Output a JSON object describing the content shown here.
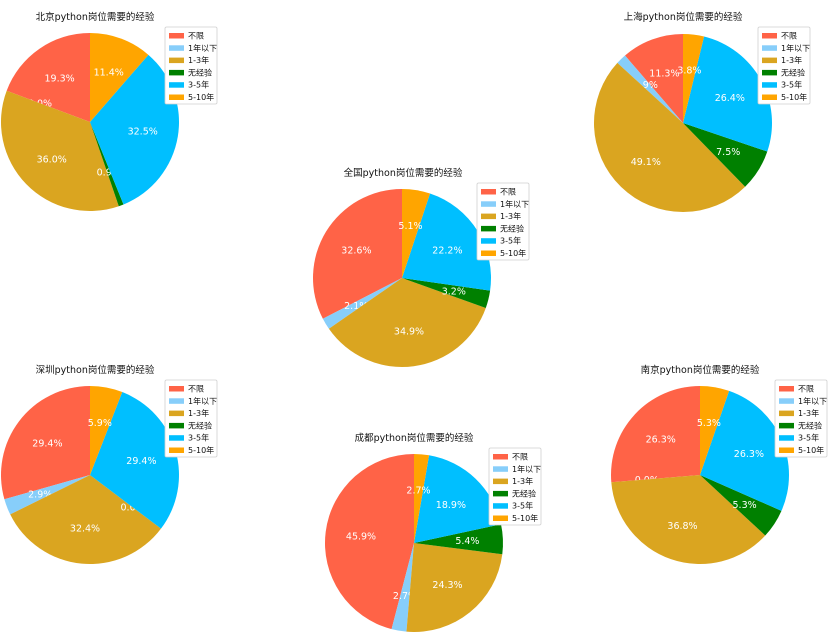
{
  "colors": [
    "#ff6347",
    "#87cefa",
    "#daa520",
    "#008000",
    "#00bfff",
    "#ffa500"
  ],
  "legend_labels": [
    "不限",
    "1年以下",
    "1-3年",
    "无经验",
    "3-5年",
    "5-10年"
  ],
  "chart_data": [
    {
      "type": "pie",
      "title": "北京python岗位需要的经验",
      "labels": [
        "不限",
        "1年以下",
        "1-3年",
        "无经验",
        "3-5年",
        "5-10年"
      ],
      "values": [
        19.3,
        0.0,
        36.0,
        0.9,
        32.5,
        11.4
      ],
      "pct_labels": [
        "19.3%",
        "0.0%",
        "36.0%",
        "0.9%",
        "32.5%",
        "11.4%"
      ],
      "legend_position": "upper-right"
    },
    {
      "type": "pie",
      "title": "上海python岗位需要的经验",
      "labels": [
        "不限",
        "1年以下",
        "1-3年",
        "无经验",
        "3-5年",
        "5-10年"
      ],
      "values": [
        11.3,
        1.9,
        49.1,
        7.5,
        26.4,
        3.8
      ],
      "pct_labels": [
        "11.3%",
        "1.9%",
        "49.1%",
        "7.5%",
        "26.4%",
        "3.8%"
      ],
      "legend_position": "upper-right"
    },
    {
      "type": "pie",
      "title": "全国python岗位需要的经验",
      "labels": [
        "不限",
        "1年以下",
        "1-3年",
        "无经验",
        "3-5年",
        "5-10年"
      ],
      "values": [
        32.6,
        2.1,
        34.9,
        3.2,
        22.2,
        5.1
      ],
      "pct_labels": [
        "32.6%",
        "2.1%",
        "34.9%",
        "3.2%",
        "22.2%",
        "5.1%"
      ],
      "legend_position": "upper-right"
    },
    {
      "type": "pie",
      "title": "深圳python岗位需要的经验",
      "labels": [
        "不限",
        "1年以下",
        "1-3年",
        "无经验",
        "3-5年",
        "5-10年"
      ],
      "values": [
        29.4,
        2.9,
        32.4,
        0.0,
        29.4,
        5.9
      ],
      "pct_labels": [
        "29.4%",
        "2.9%",
        "32.4%",
        "0.0%",
        "29.4%",
        "5.9%"
      ],
      "legend_position": "upper-right"
    },
    {
      "type": "pie",
      "title": "成都python岗位需要的经验",
      "labels": [
        "不限",
        "1年以下",
        "1-3年",
        "无经验",
        "3-5年",
        "5-10年"
      ],
      "values": [
        45.9,
        2.7,
        24.3,
        5.4,
        18.9,
        2.7
      ],
      "pct_labels": [
        "45.9%",
        "2.7%",
        "24.3%",
        "5.4%",
        "18.9%",
        "2.7%"
      ],
      "legend_position": "upper-right"
    },
    {
      "type": "pie",
      "title": "南京python岗位需要的经验",
      "labels": [
        "不限",
        "1年以下",
        "1-3年",
        "无经验",
        "3-5年",
        "5-10年"
      ],
      "values": [
        26.3,
        0.0,
        36.8,
        5.3,
        26.3,
        5.3
      ],
      "pct_labels": [
        "26.3%",
        "0.0%",
        "36.8%",
        "5.3%",
        "26.3%",
        "5.3%"
      ],
      "legend_position": "upper-right"
    }
  ]
}
